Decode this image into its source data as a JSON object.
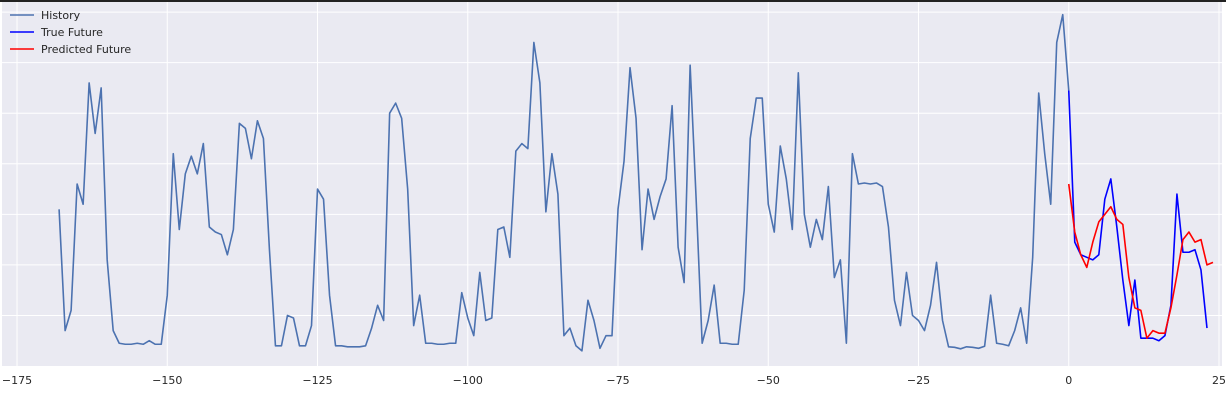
{
  "chart_data": {
    "type": "line",
    "title": "",
    "xlabel": "",
    "ylabel": "",
    "xlim": [
      -177.5,
      25.5
    ],
    "ylim": [
      -1.0,
      6.2
    ],
    "xticks": [
      -175,
      -150,
      -125,
      -100,
      -75,
      -50,
      -25,
      0,
      25
    ],
    "xtick_labels": [
      "−175",
      "−150",
      "−125",
      "−100",
      "−75",
      "−50",
      "−25",
      "0",
      "25"
    ],
    "ygrid": [
      0,
      1,
      2,
      3,
      4,
      5,
      6
    ],
    "grid": true,
    "legend_position": "top-left",
    "series": [
      {
        "name": "History",
        "color": "#4c72b0",
        "x_start": -168,
        "values": [
          2.1,
          -0.3,
          0.1,
          2.6,
          2.2,
          4.6,
          3.6,
          4.5,
          1.1,
          -0.3,
          -0.55,
          -0.57,
          -0.57,
          -0.55,
          -0.57,
          -0.5,
          -0.57,
          -0.57,
          0.4,
          3.2,
          1.7,
          2.8,
          3.15,
          2.8,
          3.4,
          1.75,
          1.65,
          1.6,
          1.2,
          1.7,
          3.8,
          3.7,
          3.1,
          3.85,
          3.5,
          1.3,
          -0.6,
          -0.6,
          0.0,
          -0.05,
          -0.6,
          -0.6,
          -0.2,
          2.5,
          2.3,
          0.4,
          -0.6,
          -0.6,
          -0.62,
          -0.62,
          -0.62,
          -0.6,
          -0.25,
          0.2,
          -0.1,
          4.0,
          4.2,
          3.9,
          2.5,
          -0.2,
          0.4,
          -0.55,
          -0.55,
          -0.57,
          -0.57,
          -0.55,
          -0.55,
          0.45,
          -0.05,
          -0.4,
          0.85,
          -0.1,
          -0.05,
          1.7,
          1.75,
          1.15,
          3.25,
          3.4,
          3.3,
          5.4,
          4.6,
          2.05,
          3.2,
          2.4,
          -0.4,
          -0.25,
          -0.6,
          -0.7,
          0.3,
          -0.1,
          -0.65,
          -0.4,
          -0.4,
          2.1,
          3.05,
          4.9,
          3.9,
          1.3,
          2.5,
          1.9,
          2.35,
          2.7,
          4.15,
          1.35,
          0.65,
          4.95,
          2.3,
          -0.55,
          -0.1,
          0.6,
          -0.55,
          -0.55,
          -0.57,
          -0.57,
          0.5,
          3.5,
          4.3,
          4.3,
          2.2,
          1.65,
          3.35,
          2.7,
          1.7,
          4.8,
          2.0,
          1.35,
          1.9,
          1.5,
          2.55,
          0.75,
          1.1,
          -0.55,
          3.2,
          2.6,
          2.62,
          2.6,
          2.62,
          2.55,
          1.75,
          0.3,
          -0.2,
          0.85,
          0.0,
          -0.1,
          -0.3,
          0.2,
          1.05,
          -0.1,
          -0.62,
          -0.63,
          -0.66,
          -0.62,
          -0.63,
          -0.65,
          -0.61,
          0.4,
          -0.55,
          -0.57,
          -0.6,
          -0.3,
          0.15,
          -0.55,
          1.15,
          4.4,
          3.2,
          2.2,
          5.4,
          5.95,
          4.45
        ]
      },
      {
        "name": "True Future",
        "color": "#0000ff",
        "x_start": 0,
        "values": [
          4.45,
          1.45,
          1.2,
          1.15,
          1.1,
          1.2,
          2.3,
          2.7,
          1.75,
          0.7,
          -0.2,
          0.7,
          -0.45,
          -0.45,
          -0.45,
          -0.5,
          -0.4,
          0.2,
          2.4,
          1.25,
          1.25,
          1.3,
          0.9,
          -0.25
        ]
      },
      {
        "name": "Predicted Future",
        "color": "#ff0000",
        "x_start": 0,
        "values": [
          2.6,
          1.65,
          1.2,
          0.95,
          1.45,
          1.85,
          2.0,
          2.15,
          1.9,
          1.8,
          0.75,
          0.15,
          0.1,
          -0.45,
          -0.3,
          -0.35,
          -0.35,
          0.15,
          0.8,
          1.5,
          1.65,
          1.45,
          1.5,
          1.0,
          1.05
        ]
      }
    ]
  }
}
